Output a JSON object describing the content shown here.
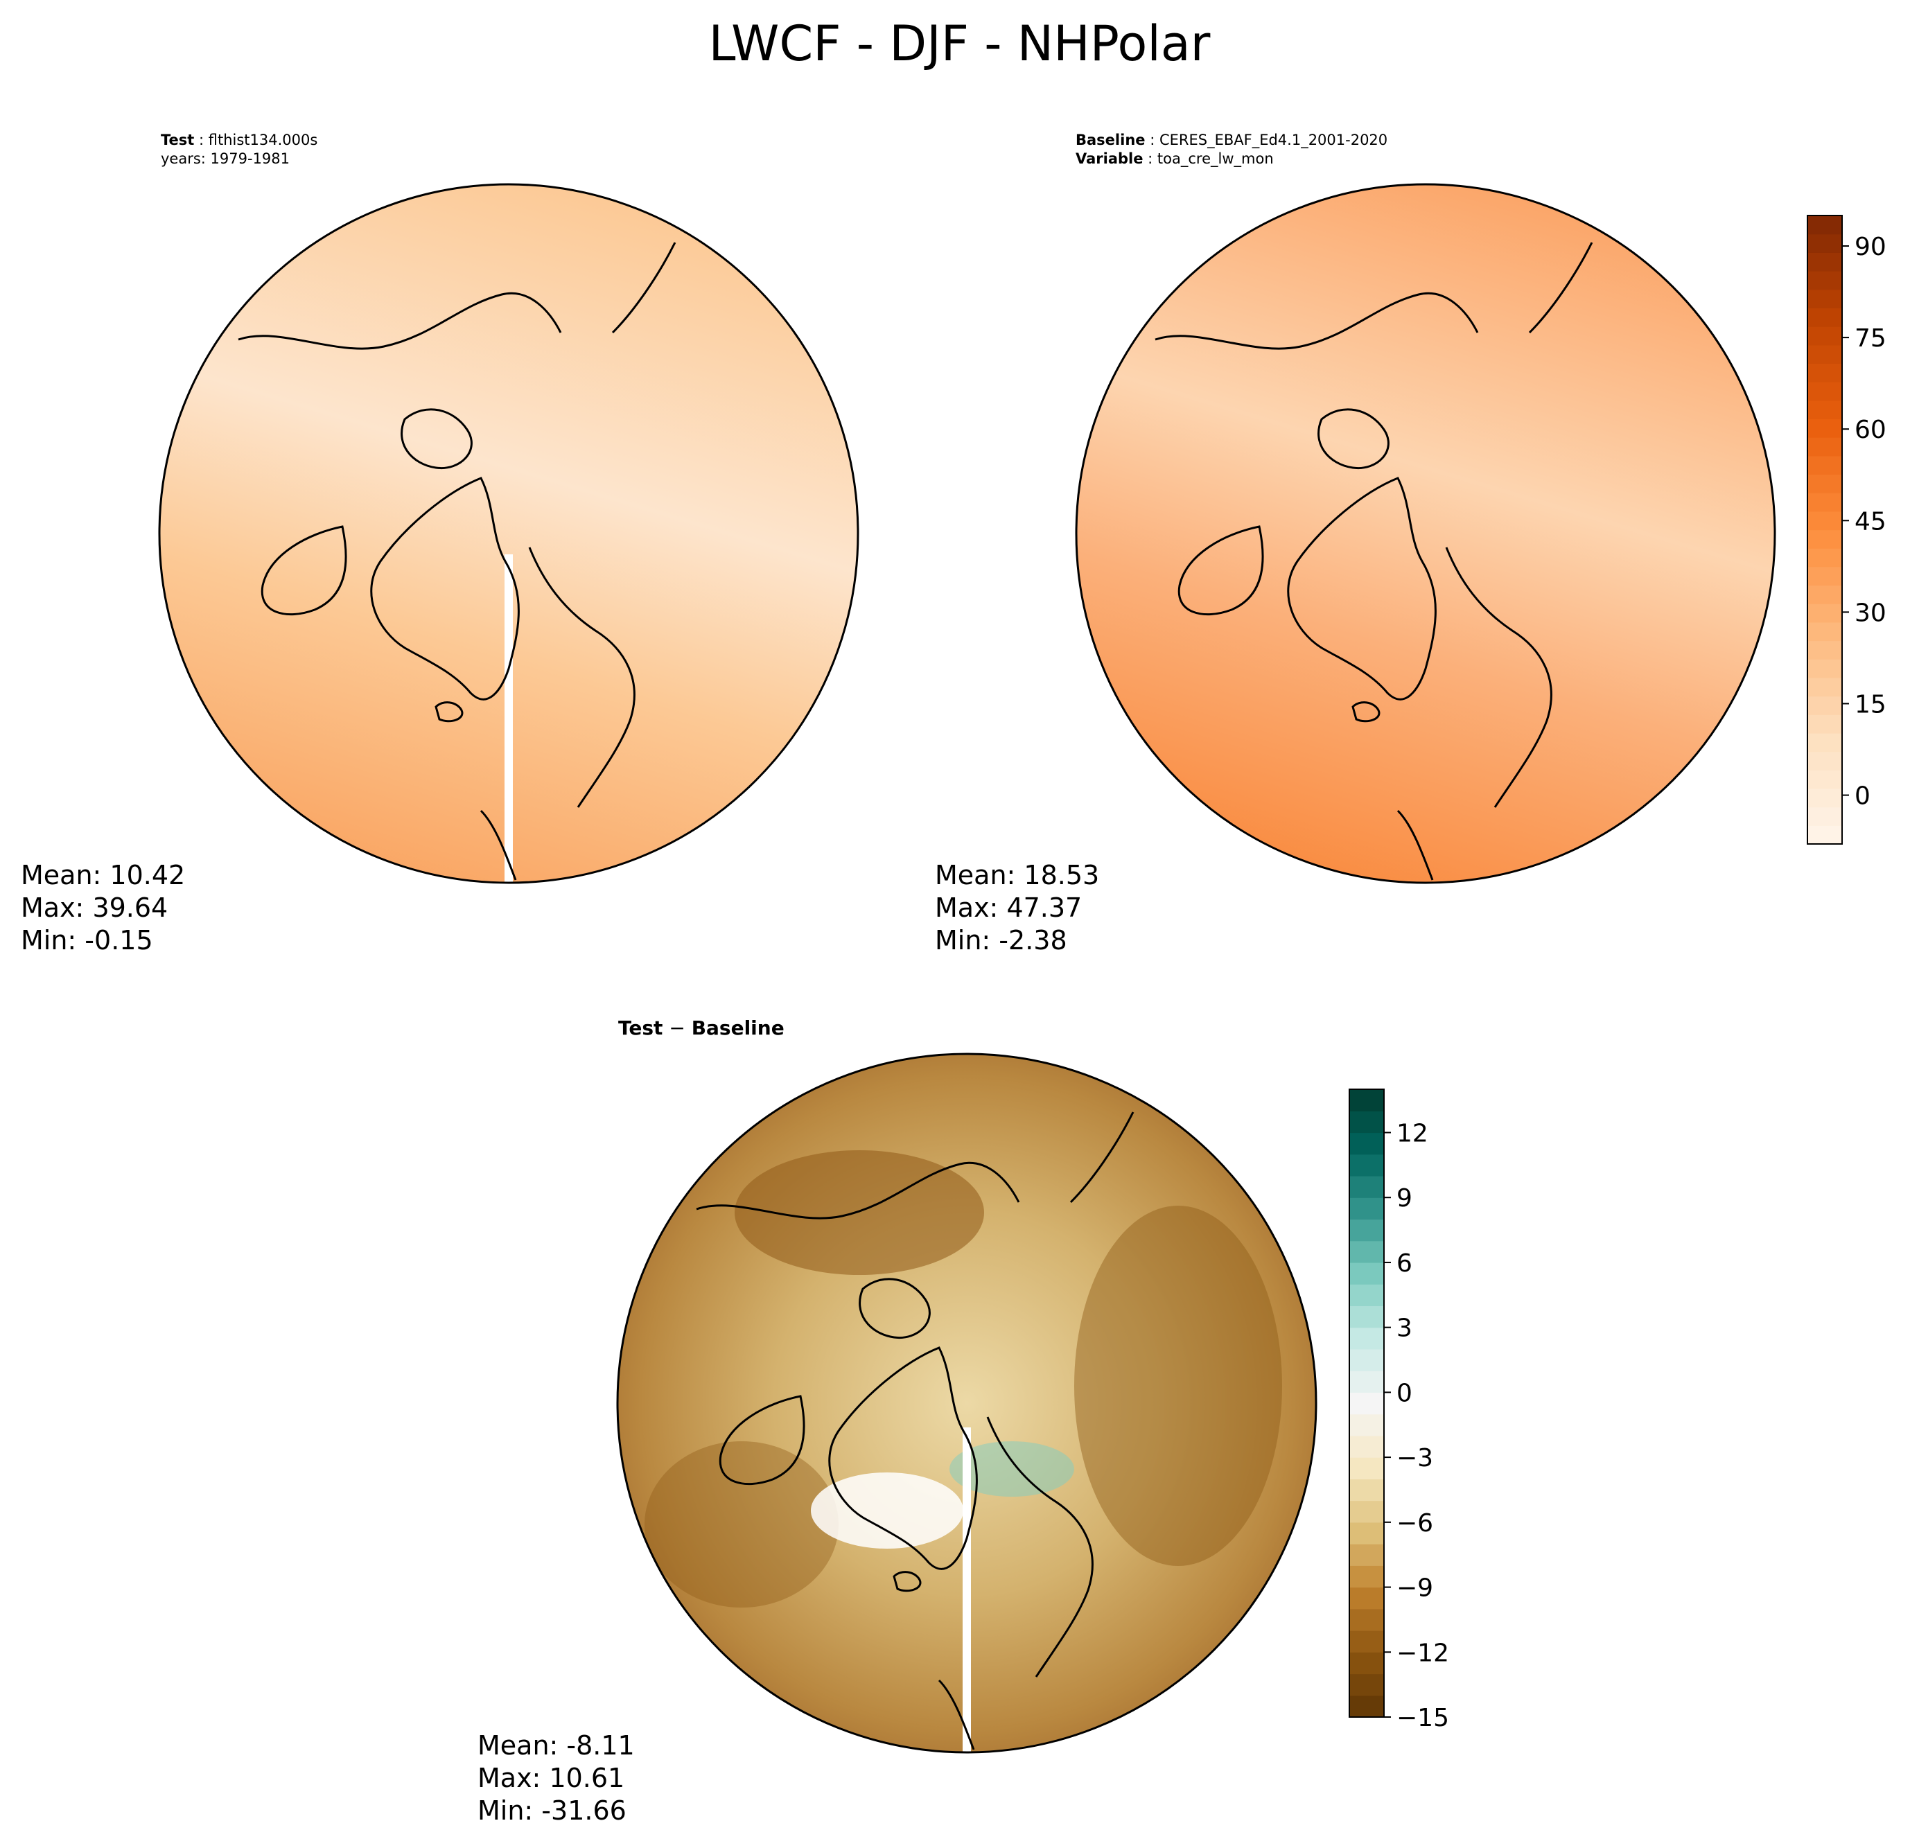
{
  "figure": {
    "title": "LWCF - DJF - NHPolar"
  },
  "panels": [
    {
      "id": "test",
      "meta_line1_key": "Test",
      "meta_line1_value": "flthist134.000s",
      "meta_line2": "years: 1979-1981",
      "stats": {
        "mean": "Mean: 10.42",
        "max": "Max: 39.64",
        "min": "Min: -0.15"
      }
    },
    {
      "id": "baseline",
      "meta_line1_key": "Baseline",
      "meta_line1_value": "CERES_EBAF_Ed4.1_2001-2020",
      "meta_line2_key": "Variable",
      "meta_line2_value": "toa_cre_lw_mon",
      "stats": {
        "mean": "Mean: 18.53",
        "max": "Max: 47.37",
        "min": "Min: -2.38"
      }
    },
    {
      "id": "diff",
      "title_left": "Test",
      "title_sep": " − ",
      "title_right": "Baseline",
      "stats": {
        "mean": "Mean: -8.11",
        "max": "Max: 10.61",
        "min": "Min: -31.66"
      }
    }
  ],
  "chart_data": [
    {
      "type": "heatmap",
      "projection": "north-polar-stereographic",
      "panel": "test",
      "stats": {
        "mean": 10.42,
        "max": 39.64,
        "min": -0.15
      },
      "colorbar_ref": 0
    },
    {
      "type": "heatmap",
      "projection": "north-polar-stereographic",
      "panel": "baseline",
      "stats": {
        "mean": 18.53,
        "max": 47.37,
        "min": -2.38
      },
      "colorbar_ref": 0
    },
    {
      "type": "heatmap",
      "projection": "north-polar-stereographic",
      "panel": "diff",
      "stats": {
        "mean": -8.11,
        "max": 10.61,
        "min": -31.66
      },
      "colorbar_ref": 1
    }
  ],
  "colorbars": [
    {
      "colormap": "Oranges",
      "range": [
        -8,
        95
      ],
      "ticks": [
        "0",
        "15",
        "30",
        "45",
        "60",
        "75",
        "90"
      ],
      "tick_values": [
        0,
        15,
        30,
        45,
        60,
        75,
        90
      ],
      "colors": [
        "#fff5eb",
        "#fde0c0",
        "#fdb97e",
        "#fd8d3c",
        "#e95f0e",
        "#c04402",
        "#7f2704"
      ]
    },
    {
      "colormap": "BrBG",
      "range": [
        -15,
        14
      ],
      "ticks": [
        "12",
        "9",
        "6",
        "3",
        "0",
        "−3",
        "−6",
        "−9",
        "−12",
        "−15"
      ],
      "tick_values": [
        12,
        9,
        6,
        3,
        0,
        -3,
        -6,
        -9,
        -12,
        -15
      ],
      "colors": [
        "#5e3505",
        "#8c5510",
        "#bf812d",
        "#dfc27d",
        "#f6e8c3",
        "#f5f5f5",
        "#c7eae5",
        "#80cdc1",
        "#35978f",
        "#01665e",
        "#013c30"
      ]
    }
  ],
  "colors": {
    "test_high": "#f9a461",
    "test_mid": "#fcc995",
    "test_low": "#fde5cd",
    "base_high": "#f9934a",
    "base_mid": "#fbb07a",
    "base_low": "#fdd5b0",
    "diff_dark": "#8f5a17",
    "diff_mid": "#c49a55",
    "diff_light": "#ecd9a6"
  }
}
